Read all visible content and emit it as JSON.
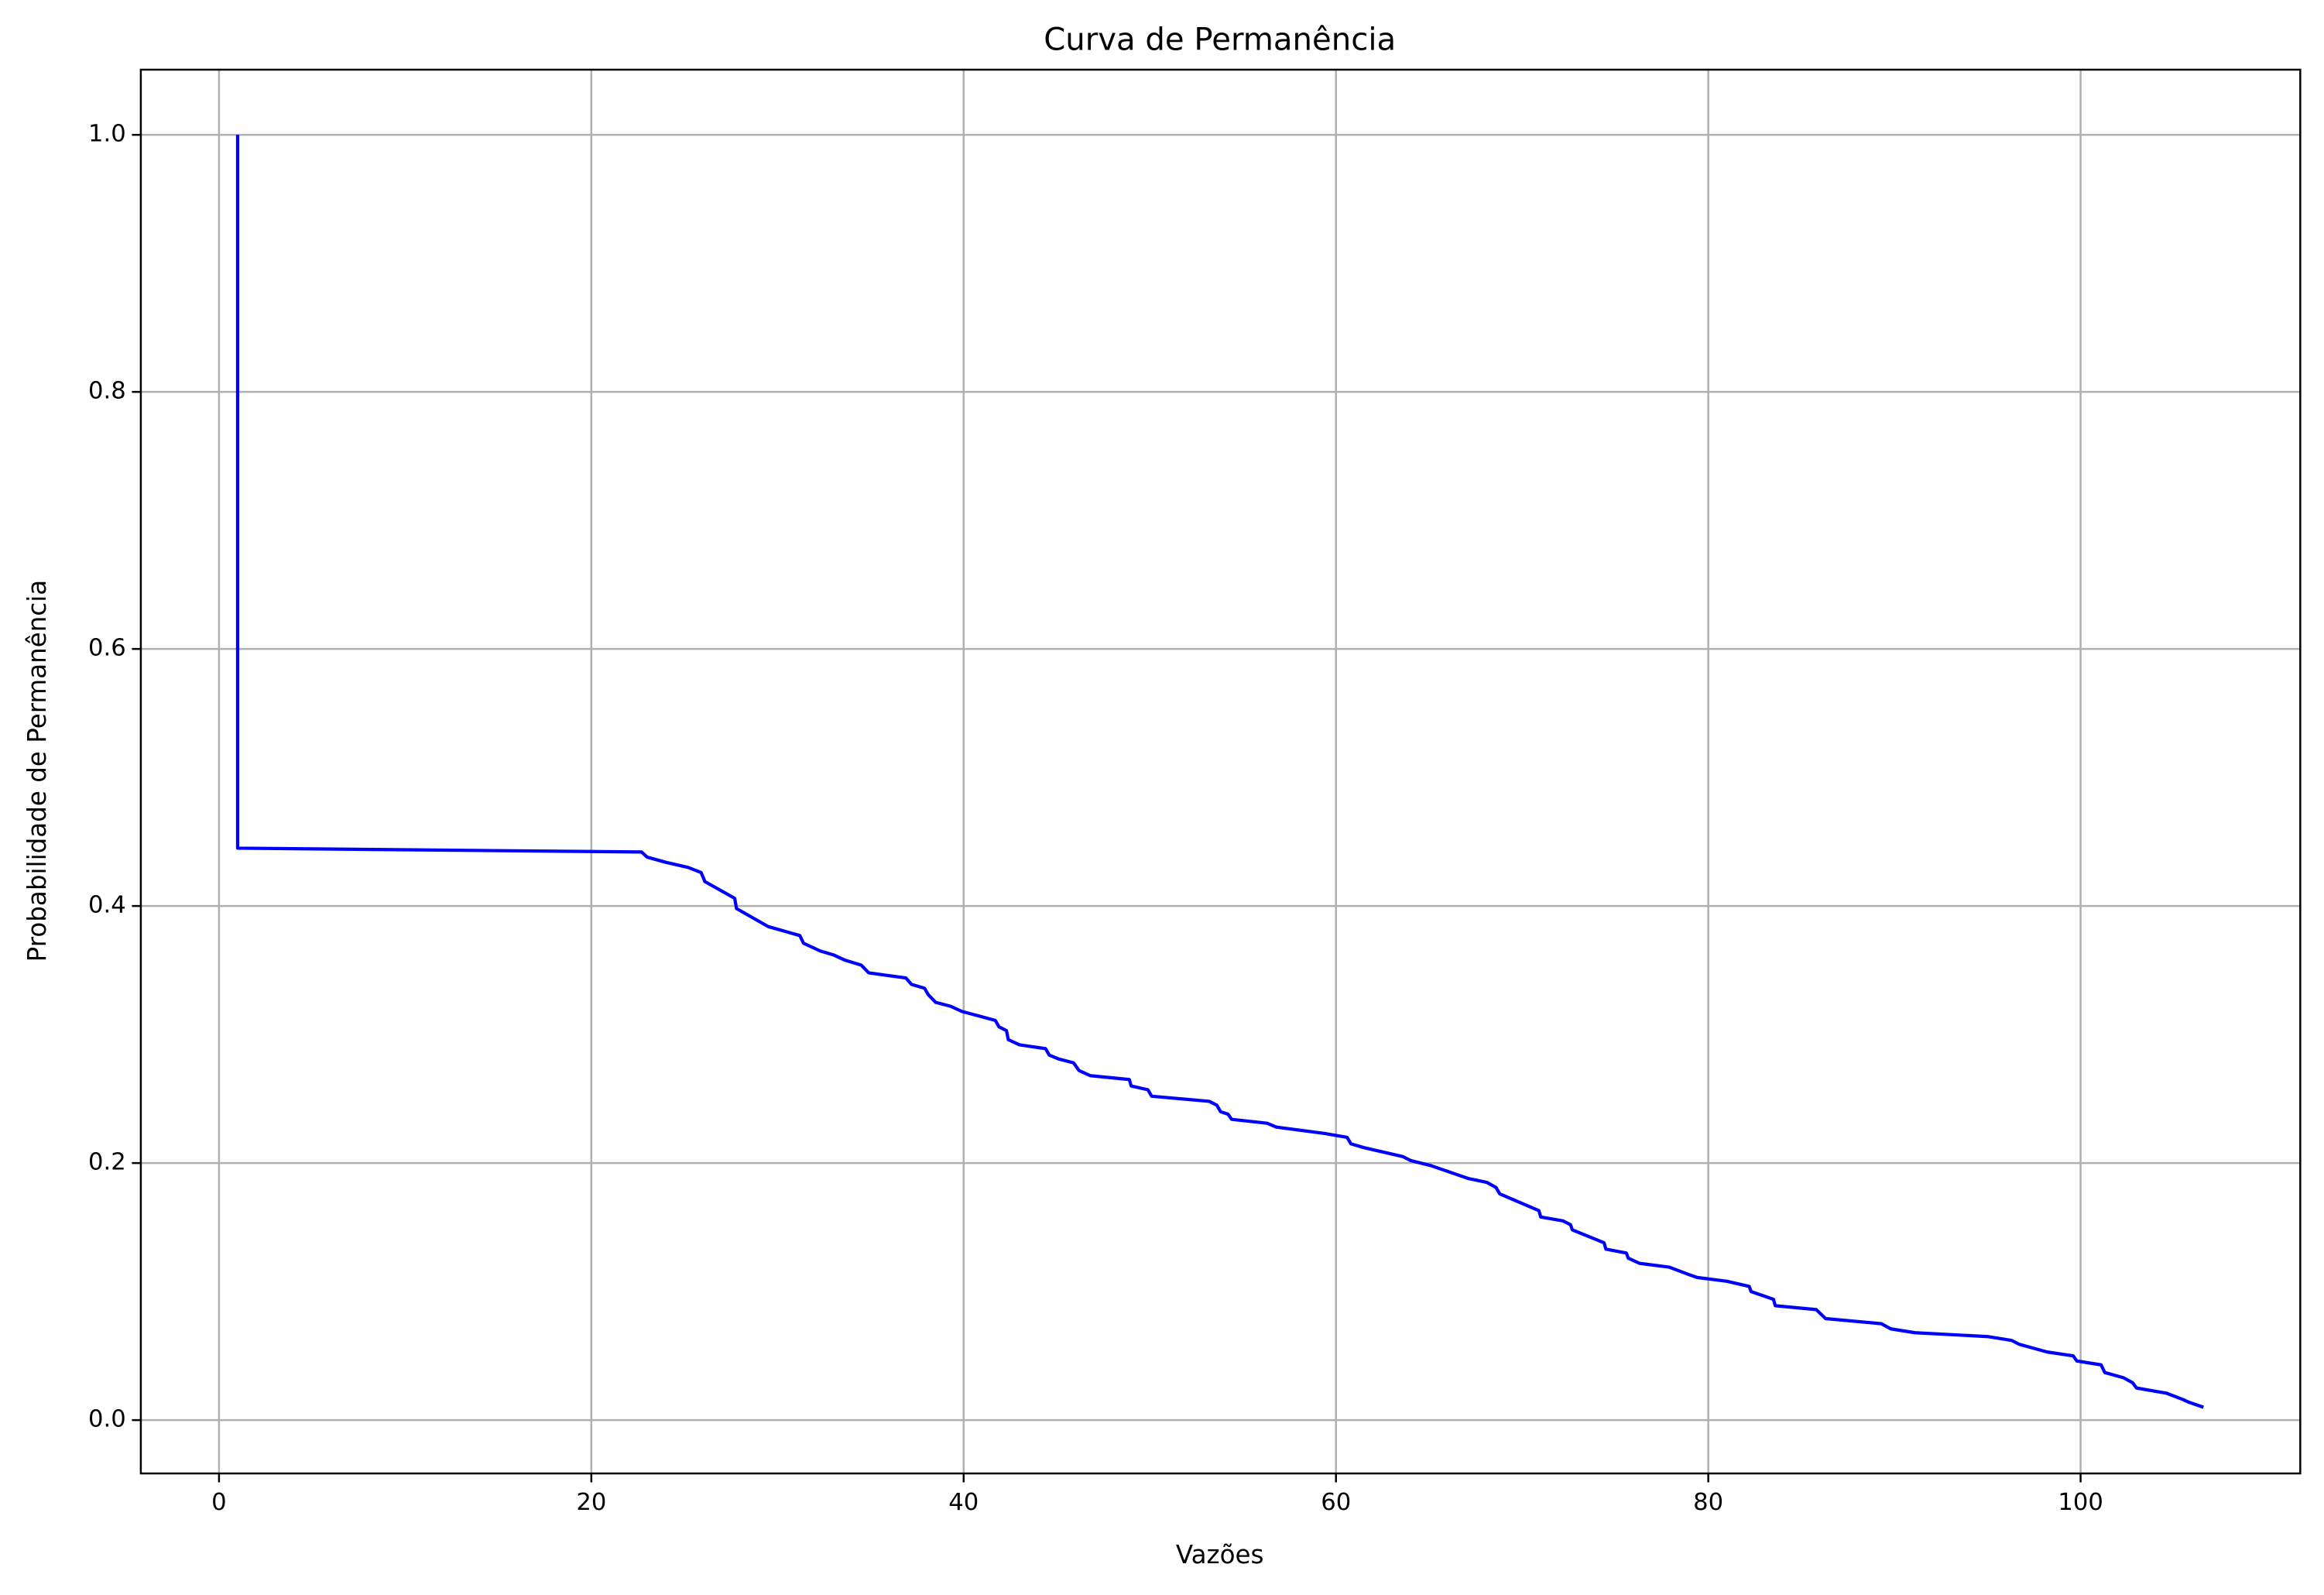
{
  "chart_data": {
    "type": "line",
    "title": "Curva de Permanência",
    "x_label": "Vazões",
    "y_label": "Probabilidade de Permanência",
    "color": "#0000ff",
    "grid": true,
    "xlim": [
      -4.2,
      111.8
    ],
    "ylim": [
      -0.0415,
      1.0507
    ],
    "xticks": [
      0,
      20,
      40,
      60,
      80,
      100
    ],
    "yticks": [
      {
        "value": 0,
        "label": "0.0"
      },
      {
        "value": 0.2,
        "label": "0.2"
      },
      {
        "value": 0.4,
        "label": "0.4"
      },
      {
        "value": 0.6,
        "label": "0.6"
      },
      {
        "value": 0.8,
        "label": "0.8"
      },
      {
        "value": 1.0,
        "label": "1.0"
      }
    ],
    "x": [
      1,
      1,
      22.7,
      23,
      24,
      25.2,
      25.9,
      26.1,
      27.7,
      27.8,
      29.5,
      31.2,
      31.4,
      32.3,
      33,
      33.6,
      34.5,
      34.9,
      36.9,
      37.2,
      37.9,
      38.1,
      38.5,
      39.3,
      39.9,
      41.7,
      41.9,
      42.3,
      42.4,
      43,
      44.4,
      44.6,
      45.1,
      45.9,
      46.2,
      46.8,
      48.9,
      49,
      49.9,
      50.1,
      53.2,
      53.6,
      53.8,
      54.2,
      54.4,
      56.3,
      56.8,
      59.4,
      60.6,
      60.8,
      61.5,
      63.6,
      64,
      65.1,
      67.1,
      68.1,
      68.6,
      68.8,
      70.9,
      71,
      72.2,
      72.6,
      72.7,
      74.4,
      74.5,
      75.6,
      75.7,
      76.3,
      77.9,
      79,
      79.4,
      81,
      82.2,
      82.3,
      83.5,
      83.6,
      85.8,
      86.3,
      89.3,
      89.8,
      91.1,
      95,
      96.3,
      96.7,
      97.2,
      98.2,
      99.6,
      99.8,
      101.1,
      101.3,
      102.3,
      102.8,
      103,
      104.6,
      105.5,
      105.8,
      106.6
    ],
    "values": [
      1.0,
      0.445,
      0.442,
      0.438,
      0.434,
      0.43,
      0.426,
      0.419,
      0.406,
      0.398,
      0.384,
      0.377,
      0.371,
      0.365,
      0.362,
      0.358,
      0.354,
      0.348,
      0.344,
      0.339,
      0.336,
      0.331,
      0.325,
      0.322,
      0.318,
      0.311,
      0.306,
      0.303,
      0.296,
      0.292,
      0.289,
      0.284,
      0.281,
      0.278,
      0.272,
      0.268,
      0.265,
      0.26,
      0.257,
      0.252,
      0.248,
      0.245,
      0.24,
      0.238,
      0.234,
      0.231,
      0.228,
      0.223,
      0.22,
      0.215,
      0.212,
      0.205,
      0.202,
      0.198,
      0.188,
      0.185,
      0.181,
      0.176,
      0.163,
      0.158,
      0.155,
      0.152,
      0.148,
      0.138,
      0.133,
      0.13,
      0.126,
      0.122,
      0.119,
      0.113,
      0.111,
      0.108,
      0.104,
      0.1,
      0.094,
      0.089,
      0.086,
      0.079,
      0.075,
      0.071,
      0.068,
      0.065,
      0.062,
      0.059,
      0.057,
      0.053,
      0.05,
      0.046,
      0.043,
      0.037,
      0.033,
      0.029,
      0.025,
      0.021,
      0.016,
      0.014,
      0.01
    ]
  }
}
